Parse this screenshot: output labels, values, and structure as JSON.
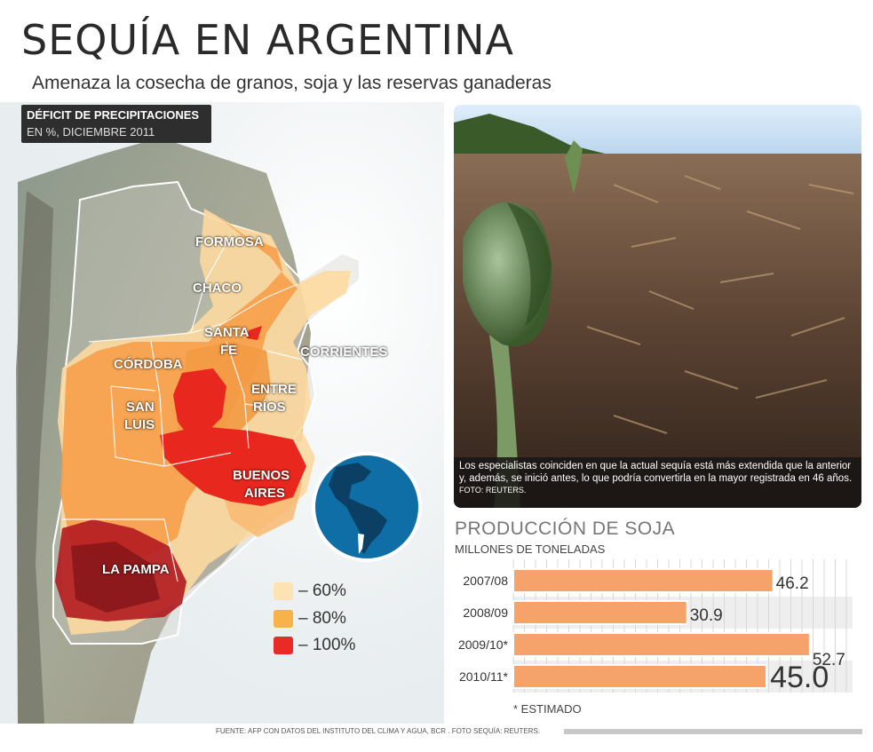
{
  "header": {
    "title": "SEQUÍA EN ARGENTINA",
    "subtitle": "Amenaza la cosecha de granos, soja y las reservas ganaderas"
  },
  "map": {
    "legend_title": "DÉFICIT DE PRECIPITACIONES",
    "legend_subtitle": "EN %, DICIEMBRE 2011",
    "provinces": {
      "formosa": "FORMOSA",
      "chaco": "CHACO",
      "santa_fe_1": "SANTA",
      "santa_fe_2": "FE",
      "corrientes": "CORRIENTES",
      "cordoba": "CÓRDOBA",
      "entre_rios_1": "ENTRE",
      "entre_rios_2": "RÍOS",
      "san_luis_1": "SAN",
      "san_luis_2": "LUIS",
      "buenos_aires_1": "BUENOS",
      "buenos_aires_2": "AIRES",
      "la_pampa": "LA PAMPA"
    },
    "scale": [
      {
        "label": "– 60%",
        "color": "#fde2b4"
      },
      {
        "label": "– 80%",
        "color": "#f8b24a"
      },
      {
        "label": "– 100%",
        "color": "#ea2a24"
      }
    ]
  },
  "photo": {
    "caption": "Los especialistas coinciden en que la actual sequía está más extendida que la anterior y, además, se inició antes, lo que podría convertirla en la mayor registrada en 46 años.",
    "credit": "FOTO: REUTERS."
  },
  "soy": {
    "title": "PRODUCCIÓN DE SOJA",
    "subtitle": "MILLONES DE TONELADAS",
    "footnote": "* ESTIMADO"
  },
  "chart_data": {
    "type": "bar",
    "orientation": "horizontal",
    "title": "PRODUCCIÓN DE SOJA",
    "subtitle": "MILLONES DE TONELADAS",
    "categories": [
      "2007/08",
      "2008/09",
      "2009/10*",
      "2010/11*"
    ],
    "values": [
      46.2,
      30.9,
      52.7,
      45.0
    ],
    "value_labels": [
      "46.2",
      "30.9",
      "52.7",
      "45.0"
    ],
    "xlim": [
      0,
      60
    ],
    "bar_color": "#f5a36a",
    "grid": true
  },
  "source": "FUENTE: AFP CON DATOS DEL INSTITUTO DEL CLIMA Y AGUA, BCR . FOTO SEQUÍA: REUTERS."
}
